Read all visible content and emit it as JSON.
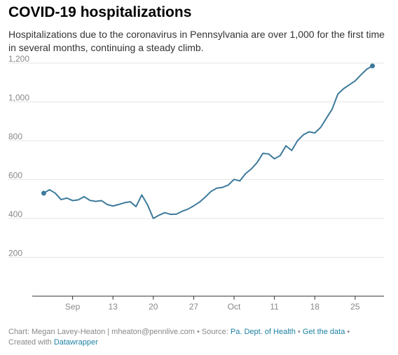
{
  "colors": {
    "line": "#3c7a9b",
    "grid": "#e6e6e6",
    "axis": "#333333",
    "tick_text": "#888888",
    "link": "#1d81a2"
  },
  "chart_data": {
    "type": "line",
    "title": "COVID-19 hospitalizations",
    "subtitle": "Hospitalizations due to the coronavirus in Pennsylvania are over 1,000 for the first time in several months, continuing a steady climb.",
    "xlabel": "",
    "ylabel": "",
    "ylim": [
      0,
      1200
    ],
    "xlim": [
      "2020-08-30",
      "2020-10-30"
    ],
    "grid": true,
    "y_ticks": [
      {
        "value": 200,
        "label": "200"
      },
      {
        "value": 400,
        "label": "400"
      },
      {
        "value": 600,
        "label": "600"
      },
      {
        "value": 800,
        "label": "800"
      },
      {
        "value": 1000,
        "label": "1,000"
      },
      {
        "value": 1200,
        "label": "1,200"
      }
    ],
    "x_ticks": [
      {
        "date": "2020-09-06",
        "label": "Sep"
      },
      {
        "date": "2020-09-13",
        "label": "13"
      },
      {
        "date": "2020-09-20",
        "label": "20"
      },
      {
        "date": "2020-09-27",
        "label": "27"
      },
      {
        "date": "2020-10-04",
        "label": "Oct"
      },
      {
        "date": "2020-10-11",
        "label": "11"
      },
      {
        "date": "2020-10-18",
        "label": "18"
      },
      {
        "date": "2020-10-25",
        "label": "25"
      }
    ],
    "endpoint_markers": true,
    "x": [
      "2020-09-01",
      "2020-09-02",
      "2020-09-03",
      "2020-09-04",
      "2020-09-05",
      "2020-09-06",
      "2020-09-07",
      "2020-09-08",
      "2020-09-09",
      "2020-09-10",
      "2020-09-11",
      "2020-09-12",
      "2020-09-13",
      "2020-09-14",
      "2020-09-15",
      "2020-09-16",
      "2020-09-17",
      "2020-09-18",
      "2020-09-19",
      "2020-09-20",
      "2020-09-21",
      "2020-09-22",
      "2020-09-23",
      "2020-09-24",
      "2020-09-25",
      "2020-09-26",
      "2020-09-27",
      "2020-09-28",
      "2020-09-29",
      "2020-09-30",
      "2020-10-01",
      "2020-10-02",
      "2020-10-03",
      "2020-10-04",
      "2020-10-05",
      "2020-10-06",
      "2020-10-07",
      "2020-10-08",
      "2020-10-09",
      "2020-10-10",
      "2020-10-11",
      "2020-10-12",
      "2020-10-13",
      "2020-10-14",
      "2020-10-15",
      "2020-10-16",
      "2020-10-17",
      "2020-10-18",
      "2020-10-19",
      "2020-10-20",
      "2020-10-21",
      "2020-10-22",
      "2020-10-23",
      "2020-10-24",
      "2020-10-25",
      "2020-10-26",
      "2020-10-27",
      "2020-10-28"
    ],
    "series": [
      {
        "values": [
          530,
          548,
          530,
          497,
          505,
          492,
          496,
          512,
          493,
          488,
          492,
          472,
          464,
          472,
          481,
          486,
          461,
          521,
          470,
          400,
          417,
          430,
          421,
          422,
          437,
          448,
          465,
          484,
          510,
          539,
          556,
          560,
          572,
          601,
          593,
          631,
          655,
          688,
          735,
          732,
          707,
          724,
          774,
          750,
          800,
          830,
          846,
          840,
          868,
          915,
          962,
          1040,
          1068,
          1088,
          1108,
          1139,
          1168,
          1185
        ]
      }
    ]
  },
  "footer": {
    "line1_prefix": "Chart: Megan Lavey-Heaton | mheaton@pennlive.com • Source: ",
    "source_link": "Pa. Dept. of Health",
    "separator": " • ",
    "data_link": "Get the data",
    "line1_suffix": " •",
    "line2_prefix": "Created with ",
    "tool_link": "Datawrapper"
  }
}
